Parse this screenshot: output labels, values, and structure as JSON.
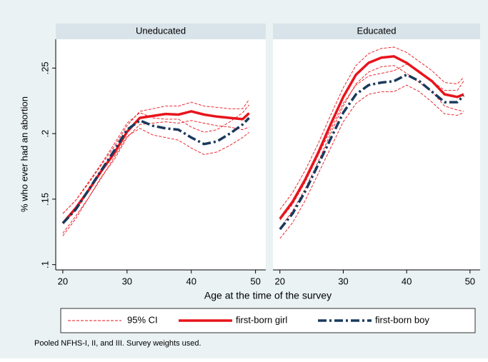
{
  "figure": {
    "y_label": "% who ever had an abortion",
    "x_label": "Age at the time of the survey",
    "ci_label": "95% CI",
    "ci_color": "#e8141c",
    "note": "Pooled NFHS-I, II, and III. Survey weights used."
  },
  "chart_data": [
    {
      "type": "line",
      "title": "Uneducated",
      "x": [
        20,
        22,
        24,
        26,
        28,
        30,
        32,
        34,
        36,
        38,
        40,
        42,
        44,
        46,
        48,
        49
      ],
      "xlim": [
        18.9,
        51.6
      ],
      "xticks": [
        20,
        30,
        40,
        50
      ],
      "ylim": [
        0.096,
        0.272
      ],
      "yticks": [
        {
          "value": 0.1,
          "label": ".1"
        },
        {
          "value": 0.15,
          "label": ".15"
        },
        {
          "value": 0.2,
          "label": ".2"
        },
        {
          "value": 0.25,
          "label": ".25"
        }
      ],
      "series": [
        {
          "name": "first-born girl",
          "color": "#e8141c",
          "style": "solid",
          "values": [
            0.1316,
            0.143,
            0.1567,
            0.1714,
            0.185,
            0.2014,
            0.212,
            0.2135,
            0.215,
            0.2145,
            0.217,
            0.2145,
            0.213,
            0.212,
            0.211,
            0.2156
          ],
          "ci_upper": [
            0.139,
            0.149,
            0.162,
            0.176,
            0.19,
            0.206,
            0.217,
            0.219,
            0.221,
            0.221,
            0.224,
            0.221,
            0.22,
            0.219,
            0.219,
            0.226
          ],
          "ci_lower": [
            0.124,
            0.137,
            0.151,
            0.167,
            0.18,
            0.197,
            0.207,
            0.208,
            0.209,
            0.208,
            0.21,
            0.208,
            0.206,
            0.205,
            0.203,
            0.205
          ]
        },
        {
          "name": "first-born boy",
          "color": "#1a3a5c",
          "style": "dashdot",
          "values": [
            0.1316,
            0.142,
            0.157,
            0.172,
            0.187,
            0.203,
            0.21,
            0.206,
            0.204,
            0.203,
            0.197,
            0.192,
            0.194,
            0.2,
            0.207,
            0.212
          ],
          "ci_upper": [
            0.139,
            0.149,
            0.163,
            0.177,
            0.192,
            0.208,
            0.216,
            0.212,
            0.211,
            0.211,
            0.205,
            0.201,
            0.203,
            0.209,
            0.216,
            0.222
          ],
          "ci_lower": [
            0.122,
            0.135,
            0.151,
            0.166,
            0.182,
            0.198,
            0.204,
            0.199,
            0.197,
            0.195,
            0.189,
            0.184,
            0.186,
            0.191,
            0.197,
            0.201
          ]
        }
      ]
    },
    {
      "type": "line",
      "title": "Educated",
      "x": [
        20,
        22,
        24,
        26,
        28,
        30,
        32,
        34,
        36,
        38,
        40,
        42,
        44,
        46,
        48,
        49
      ],
      "xlim": [
        18.9,
        51.6
      ],
      "xticks": [
        20,
        30,
        40,
        50
      ],
      "ylim": [
        0.096,
        0.272
      ],
      "series": [
        {
          "name": "first-born girl",
          "color": "#e8141c",
          "style": "solid",
          "values": [
            0.135,
            0.148,
            0.165,
            0.185,
            0.207,
            0.228,
            0.245,
            0.254,
            0.258,
            0.259,
            0.254,
            0.247,
            0.24,
            0.23,
            0.228,
            0.23
          ],
          "ci_upper": [
            0.142,
            0.155,
            0.172,
            0.192,
            0.214,
            0.235,
            0.252,
            0.261,
            0.265,
            0.266,
            0.262,
            0.255,
            0.248,
            0.239,
            0.238,
            0.243
          ],
          "ci_lower": [
            0.128,
            0.141,
            0.158,
            0.178,
            0.2,
            0.221,
            0.238,
            0.247,
            0.251,
            0.252,
            0.246,
            0.239,
            0.232,
            0.221,
            0.218,
            0.217
          ]
        },
        {
          "name": "first-born boy",
          "color": "#1a3a5c",
          "style": "dashdot",
          "values": [
            0.127,
            0.139,
            0.156,
            0.176,
            0.196,
            0.216,
            0.23,
            0.237,
            0.239,
            0.24,
            0.245,
            0.24,
            0.232,
            0.224,
            0.224,
            0.229
          ],
          "ci_upper": [
            0.134,
            0.146,
            0.163,
            0.183,
            0.203,
            0.223,
            0.237,
            0.244,
            0.246,
            0.248,
            0.253,
            0.248,
            0.24,
            0.233,
            0.233,
            0.24
          ],
          "ci_lower": [
            0.12,
            0.132,
            0.149,
            0.169,
            0.189,
            0.209,
            0.223,
            0.23,
            0.232,
            0.232,
            0.237,
            0.232,
            0.224,
            0.215,
            0.214,
            0.216
          ]
        }
      ]
    }
  ]
}
